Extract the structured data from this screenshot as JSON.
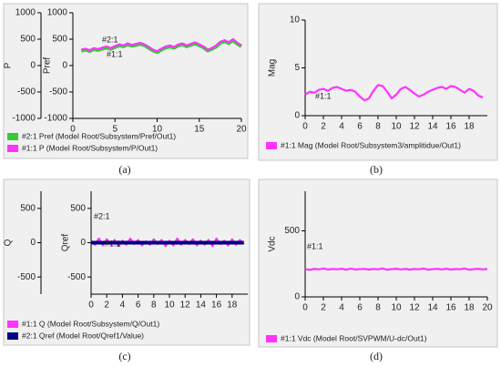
{
  "chart_data": [
    {
      "type": "line",
      "caption": "(a)",
      "ylabel": "P",
      "y2label": "Pref",
      "annotations": [
        "#2:1",
        "#1:1"
      ],
      "x": [
        1,
        1.5,
        2,
        2.5,
        3,
        3.5,
        4,
        4.5,
        5,
        5.5,
        6,
        6.5,
        7,
        7.5,
        8,
        8.5,
        9,
        9.5,
        10,
        10.5,
        11,
        11.5,
        12,
        12.5,
        13,
        13.5,
        14,
        14.5,
        15,
        15.5,
        16,
        16.5,
        17,
        17.5,
        18,
        18.5,
        19,
        19.5,
        20
      ],
      "xlim": [
        0,
        20
      ],
      "xticks": [
        0,
        5,
        10,
        15,
        20
      ],
      "ylim": [
        -1000,
        1000
      ],
      "yticks": [
        -1000,
        -500,
        0,
        500,
        1000
      ],
      "y2lim": [
        -1000,
        1000
      ],
      "y2ticks": [
        -1000,
        -500,
        0,
        500,
        1000
      ],
      "series": [
        {
          "name": "#2:1 Pref (Model Root/Subsystem/Pref/Out1)",
          "color": "#33cc33",
          "axis": "y2",
          "values": [
            280,
            300,
            275,
            310,
            295,
            320,
            340,
            315,
            350,
            380,
            365,
            400,
            375,
            390,
            410,
            385,
            335,
            285,
            255,
            300,
            340,
            360,
            335,
            380,
            400,
            365,
            390,
            420,
            385,
            345,
            285,
            315,
            360,
            430,
            460,
            425,
            480,
            415,
            365
          ]
        },
        {
          "name": "#1:1 P (Model Root/Subsystem/P/Out1)",
          "color": "#ff33ff",
          "values": [
            300,
            320,
            290,
            330,
            310,
            340,
            360,
            330,
            370,
            400,
            380,
            420,
            390,
            410,
            430,
            400,
            350,
            300,
            270,
            320,
            360,
            380,
            350,
            400,
            420,
            380,
            410,
            440,
            400,
            360,
            300,
            330,
            380,
            450,
            480,
            440,
            500,
            430,
            380
          ]
        }
      ]
    },
    {
      "type": "line",
      "caption": "(b)",
      "ylabel": "Mag",
      "annotations": [
        "#1:1"
      ],
      "x": [
        0,
        0.5,
        1,
        1.5,
        2,
        2.5,
        3,
        3.5,
        4,
        4.5,
        5,
        5.5,
        6,
        6.5,
        7,
        7.5,
        8,
        8.5,
        9,
        9.5,
        10,
        10.5,
        11,
        11.5,
        12,
        12.5,
        13,
        13.5,
        14,
        14.5,
        15,
        15.5,
        16,
        16.5,
        17,
        17.5,
        18,
        18.5,
        19,
        19.5
      ],
      "xlim": [
        0,
        20
      ],
      "xticks": [
        0,
        2,
        4,
        6,
        8,
        10,
        12,
        14,
        16,
        18
      ],
      "ylim": [
        0,
        10
      ],
      "yticks": [
        0,
        5,
        10
      ],
      "series": [
        {
          "name": "#1:1 Mag (Model Root/Subsystem3/amplitidue/Out1)",
          "color": "#ff33ff",
          "values": [
            2.2,
            2.5,
            2.4,
            2.7,
            2.8,
            2.6,
            2.9,
            3.0,
            2.8,
            2.6,
            2.7,
            2.5,
            2.0,
            1.6,
            1.8,
            2.6,
            3.2,
            3.1,
            2.5,
            1.8,
            2.2,
            2.8,
            3.0,
            2.7,
            2.3,
            2.0,
            2.2,
            2.5,
            2.7,
            2.9,
            3.0,
            2.8,
            3.1,
            3.0,
            2.7,
            2.4,
            2.8,
            2.6,
            2.1,
            1.9
          ]
        }
      ]
    },
    {
      "type": "line",
      "caption": "(c)",
      "ylabel": "Q",
      "y2label": "Qref",
      "annotations": [
        "#2:1",
        "#1:1"
      ],
      "x": [
        0,
        0.5,
        1,
        1.5,
        2,
        2.5,
        3,
        3.5,
        4,
        4.5,
        5,
        5.5,
        6,
        6.5,
        7,
        7.5,
        8,
        8.5,
        9,
        9.5,
        10,
        10.5,
        11,
        11.5,
        12,
        12.5,
        13,
        13.5,
        14,
        14.5,
        15,
        15.5,
        16,
        16.5,
        17,
        17.5,
        18,
        18.5,
        19,
        19.5
      ],
      "xlim": [
        0,
        20
      ],
      "xticks": [
        0,
        2,
        4,
        6,
        8,
        10,
        12,
        14,
        16,
        18
      ],
      "ylim": [
        -750,
        750
      ],
      "yticks": [
        -500,
        0,
        500
      ],
      "y2lim": [
        -750,
        750
      ],
      "y2ticks": [
        -500,
        0,
        500
      ],
      "series": [
        {
          "name": "#1:1 Q (Model Root/Subsystem/Q/Out1)",
          "color": "#ff33ff",
          "values": [
            20,
            -30,
            60,
            -40,
            50,
            -20,
            40,
            -50,
            30,
            -30,
            60,
            -20,
            40,
            -40,
            20,
            -30,
            50,
            -20,
            40,
            -50,
            30,
            -40,
            60,
            -30,
            40,
            -20,
            50,
            -40,
            30,
            -30,
            40,
            -50,
            60,
            -20,
            30,
            -40,
            50,
            -30,
            40,
            -20
          ]
        },
        {
          "name": "#2:1 Qref (Model Root/Qref1/Value)",
          "color": "#000080",
          "axis": "y2",
          "values": [
            0,
            0,
            0,
            0,
            0,
            0,
            0,
            0,
            0,
            0,
            0,
            0,
            0,
            0,
            0,
            0,
            0,
            0,
            0,
            0,
            0,
            0,
            0,
            0,
            0,
            0,
            0,
            0,
            0,
            0,
            0,
            0,
            0,
            0,
            0,
            0,
            0,
            0,
            0,
            0
          ]
        }
      ]
    },
    {
      "type": "line",
      "caption": "(d)",
      "ylabel": "Vdc",
      "annotations": [
        "#1:1"
      ],
      "x": [
        0,
        0.5,
        1,
        1.5,
        2,
        2.5,
        3,
        3.5,
        4,
        4.5,
        5,
        5.5,
        6,
        6.5,
        7,
        7.5,
        8,
        8.5,
        9,
        9.5,
        10,
        10.5,
        11,
        11.5,
        12,
        12.5,
        13,
        13.5,
        14,
        14.5,
        15,
        15.5,
        16,
        16.5,
        17,
        17.5,
        18,
        18.5,
        19,
        19.5,
        20
      ],
      "xlim": [
        0,
        20
      ],
      "xticks": [
        0,
        2,
        4,
        6,
        8,
        10,
        12,
        14,
        16,
        18,
        20
      ],
      "ylim": [
        0,
        800
      ],
      "yticks": [
        0,
        500
      ],
      "series": [
        {
          "name": "#1:1 Vdc (Model Root/SVPWM/U-dc/Out1)",
          "color": "#ff33ff",
          "values": [
            210,
            205,
            212,
            208,
            215,
            207,
            211,
            209,
            213,
            206,
            214,
            208,
            210,
            212,
            207,
            211,
            209,
            215,
            206,
            210,
            213,
            208,
            212,
            207,
            211,
            209,
            214,
            206,
            210,
            212,
            208,
            213,
            207,
            211,
            209,
            215,
            206,
            210,
            212,
            208,
            211
          ]
        }
      ]
    }
  ]
}
